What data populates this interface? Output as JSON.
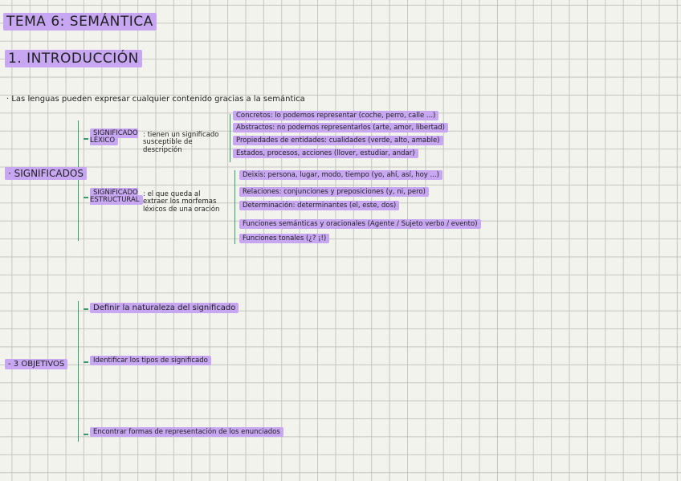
{
  "title": "TEMA 6: SEMÁNTICA",
  "section": "1. INTRODUCCIÓN",
  "intro": "· Las lenguas pueden expresar cualquier contenido gracias a la semántica",
  "significados": {
    "label": "· SIGNIFICADOS",
    "lexico": {
      "label": "SIGNIFICADO LÉXICO",
      "desc": ": tienen un significado susceptible de descripción",
      "items": [
        "Concretos: lo podemos representar (coche, perro, calle ...)",
        "Abstractos: no podemos representarlos (arte, amor, libertad)",
        "Propiedades de entidades: cualidades (verde, alto, amable)",
        "Estados, procesos, acciones (llover, estudiar, andar)"
      ]
    },
    "estructural": {
      "label": "SIGNIFICADO ESTRUCTURAL",
      "desc": ": el que queda al extraer los morfemas léxicos de una oración",
      "items": [
        "Deixis: persona, lugar, modo, tiempo (yo, ahí, así, hoy ...)",
        "Relaciones: conjunciones y preposiciones (y, ni, pero)",
        "Determinación: determinantes (el, este, dos)",
        "Funciones semánticas y oracionales (Agente / Sujeto verbo / evento)",
        "Funciones tonales (¿? ¡!)"
      ]
    }
  },
  "objetivos": {
    "label": "- 3 OBJETIVOS",
    "items": [
      "Definir la naturaleza del significado",
      "Identificar los tipos de significado",
      "Encontrar formas de representación de los enunciados"
    ]
  }
}
